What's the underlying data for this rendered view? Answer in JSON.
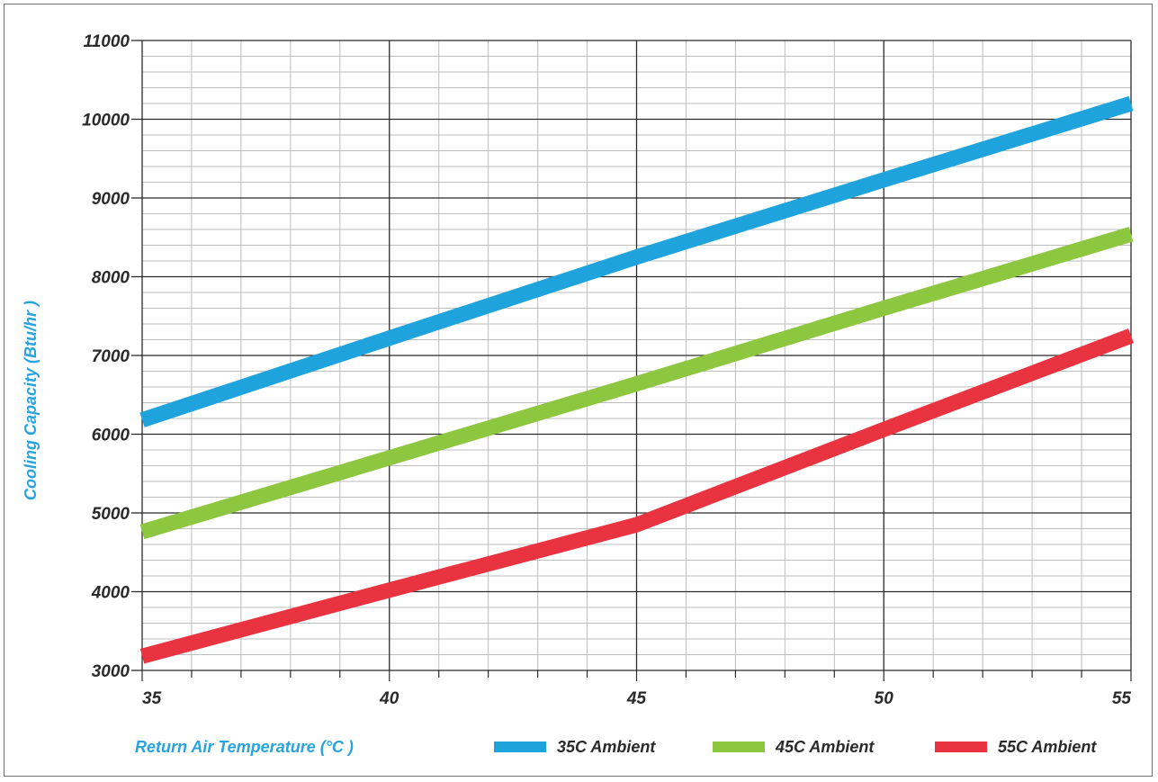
{
  "chart_data": {
    "type": "line",
    "xlabel": "Return Air Temperature (°C )",
    "ylabel": "Cooling Capacity (Btu/hr )",
    "xlim": [
      35,
      55
    ],
    "ylim": [
      3000,
      11000
    ],
    "x_ticks": [
      35,
      40,
      45,
      50,
      55
    ],
    "y_ticks": [
      3000,
      4000,
      5000,
      6000,
      7000,
      8000,
      9000,
      10000,
      11000
    ],
    "grid": true,
    "legend_position": "bottom",
    "series": [
      {
        "name": "35C Ambient",
        "color": "#1fa3dd",
        "x": [
          35,
          40,
          45,
          50,
          55
        ],
        "y": [
          6180,
          7220,
          8250,
          9230,
          10200
        ]
      },
      {
        "name": "45C Ambient",
        "color": "#8dc63f",
        "x": [
          35,
          40,
          45,
          50,
          55
        ],
        "y": [
          4760,
          5700,
          6640,
          7600,
          8540
        ]
      },
      {
        "name": "55C Ambient",
        "color": "#ea3340",
        "x": [
          35,
          40,
          45,
          50,
          55
        ],
        "y": [
          3180,
          4020,
          4850,
          6060,
          7250
        ]
      }
    ]
  }
}
